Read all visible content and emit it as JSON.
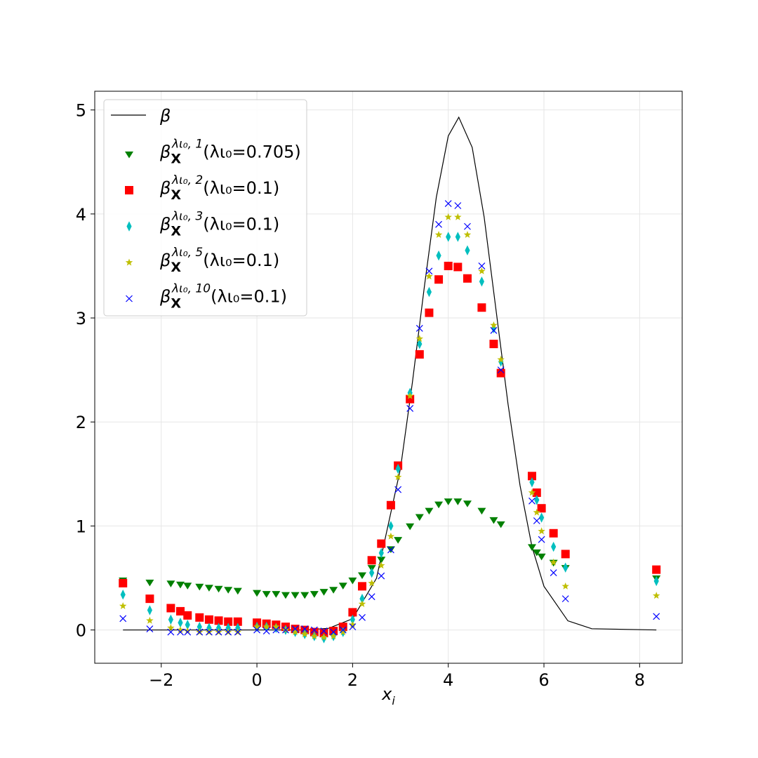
{
  "chart_data": {
    "type": "scatter",
    "xlabel": [
      "x",
      "i"
    ],
    "xlim": [
      -3.39,
      8.89
    ],
    "ylim": [
      -0.32,
      5.18
    ],
    "xticks": [
      {
        "value": -2,
        "label": "−2"
      },
      0,
      2,
      4,
      6,
      8
    ],
    "yticks": [
      0,
      1,
      2,
      3,
      4,
      5
    ],
    "grid": true,
    "legend": "upper left",
    "x": [
      -2.8,
      -2.24,
      -1.8,
      -1.6,
      -1.45,
      -1.2,
      -1.0,
      -0.8,
      -0.6,
      -0.4,
      0,
      0.2,
      0.4,
      0.6,
      0.8,
      1.0,
      1.2,
      1.4,
      1.6,
      1.8,
      2.0,
      2.2,
      2.4,
      2.6,
      2.8,
      2.95,
      3.2,
      3.4,
      3.6,
      3.8,
      4.0,
      4.2,
      4.4,
      4.7,
      4.95,
      5.1,
      5.75,
      5.85,
      5.95,
      6.2,
      6.45,
      8.35
    ],
    "series": [
      {
        "name": [
          "β"
        ],
        "kind": "line",
        "color": "#000000",
        "x": [
          -2.8,
          0,
          1,
          1.5,
          2,
          2.5,
          3,
          3.25,
          3.5,
          3.75,
          4,
          4.22,
          4.5,
          4.75,
          5,
          5.25,
          5.5,
          5.75,
          6,
          6.5,
          7,
          8.35
        ],
        "values": [
          0,
          0,
          0,
          0.016,
          0.108,
          0.498,
          1.55,
          2.38,
          3.3,
          4.16,
          4.75,
          4.93,
          4.64,
          3.97,
          3.07,
          2.17,
          1.39,
          0.8,
          0.42,
          0.088,
          0.012,
          0
        ]
      },
      {
        "name": [
          "β",
          "X",
          "λι₀, 1",
          "(λι₀=0.705)"
        ],
        "marker": "triangle-down",
        "color": "#008000",
        "values": [
          0.48,
          0.46,
          0.45,
          0.44,
          0.43,
          0.42,
          0.41,
          0.4,
          0.39,
          0.38,
          0.36,
          0.35,
          0.35,
          0.34,
          0.34,
          0.34,
          0.35,
          0.37,
          0.39,
          0.43,
          0.48,
          0.53,
          0.6,
          0.68,
          0.78,
          0.87,
          1.0,
          1.09,
          1.15,
          1.21,
          1.24,
          1.24,
          1.22,
          1.15,
          1.06,
          1.02,
          0.8,
          0.75,
          0.71,
          0.65,
          0.6,
          0.5
        ]
      },
      {
        "name": [
          "β",
          "X",
          "λι₀, 2",
          "(λι₀=0.1)"
        ],
        "marker": "square",
        "color": "#ff0000",
        "values": [
          0.45,
          0.3,
          0.21,
          0.18,
          0.14,
          0.12,
          0.1,
          0.09,
          0.08,
          0.08,
          0.07,
          0.06,
          0.05,
          0.03,
          0.01,
          0.0,
          -0.02,
          -0.03,
          -0.01,
          0.03,
          0.17,
          0.42,
          0.67,
          0.83,
          1.2,
          1.58,
          2.22,
          2.65,
          3.05,
          3.37,
          3.5,
          3.49,
          3.38,
          3.1,
          2.75,
          2.47,
          1.48,
          1.32,
          1.17,
          0.93,
          0.73,
          0.58
        ]
      },
      {
        "name": [
          "β",
          "X",
          "λι₀, 3",
          "(λι₀=0.1)"
        ],
        "marker": "thin-diamond",
        "color": "#00bfbf",
        "values": [
          0.34,
          0.19,
          0.1,
          0.07,
          0.05,
          0.03,
          0.02,
          0.02,
          0.02,
          0.02,
          0.03,
          0.03,
          0.02,
          0.0,
          -0.02,
          -0.04,
          -0.06,
          -0.08,
          -0.06,
          -0.02,
          0.1,
          0.3,
          0.55,
          0.74,
          1.0,
          1.55,
          2.28,
          2.75,
          3.25,
          3.6,
          3.78,
          3.78,
          3.65,
          3.35,
          2.9,
          2.58,
          1.42,
          1.25,
          1.08,
          0.8,
          0.6,
          0.47
        ]
      },
      {
        "name": [
          "β",
          "X",
          "λι₀, 5",
          "(λι₀=0.1)"
        ],
        "marker": "star",
        "color": "#bfbf00",
        "values": [
          0.23,
          0.09,
          0.02,
          0.0,
          -0.01,
          -0.02,
          -0.02,
          -0.02,
          -0.02,
          -0.02,
          0.03,
          0.03,
          0.03,
          0.0,
          -0.02,
          -0.04,
          -0.06,
          -0.07,
          -0.06,
          -0.02,
          0.05,
          0.25,
          0.45,
          0.62,
          0.9,
          1.47,
          2.25,
          2.8,
          3.4,
          3.8,
          3.97,
          3.97,
          3.8,
          3.45,
          2.93,
          2.6,
          1.32,
          1.13,
          0.95,
          0.65,
          0.42,
          0.33
        ]
      },
      {
        "name": [
          "β",
          "X",
          "λι₀, 10",
          "(λι₀=0.1)"
        ],
        "marker": "x",
        "color": "#0000ff",
        "values": [
          0.11,
          0.01,
          -0.02,
          -0.02,
          -0.02,
          -0.02,
          -0.02,
          -0.02,
          -0.02,
          -0.02,
          0.0,
          -0.01,
          0.0,
          0.0,
          0.01,
          0.01,
          0.0,
          -0.01,
          -0.02,
          0.0,
          0.03,
          0.12,
          0.32,
          0.52,
          0.77,
          1.35,
          2.13,
          2.9,
          3.45,
          3.9,
          4.1,
          4.08,
          3.88,
          3.5,
          2.88,
          2.5,
          1.24,
          1.05,
          0.87,
          0.55,
          0.3,
          0.13
        ]
      }
    ]
  }
}
